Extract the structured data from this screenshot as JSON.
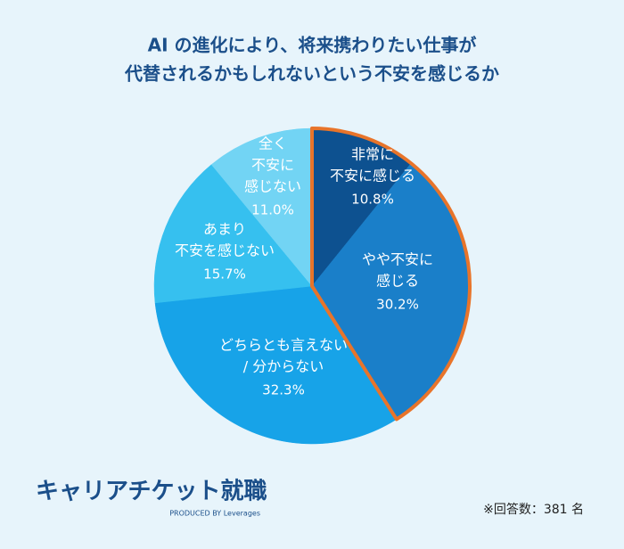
{
  "chart_data": {
    "type": "pie",
    "title": [
      "AI の進化により、将来携わりたい仕事が",
      "代替されるかもしれないという不安を感じるか"
    ],
    "categories": [
      [
        "非常に",
        "不安に感じる"
      ],
      [
        "やや不安に",
        "感じる"
      ],
      [
        "どちらとも言えない",
        "/ 分からない"
      ],
      [
        "あまり",
        "不安を感じない"
      ],
      [
        "全く",
        "不安に",
        "感じない"
      ]
    ],
    "values": [
      10.8,
      30.2,
      32.3,
      15.7,
      11.0
    ],
    "value_labels": [
      "10.8%",
      "30.2%",
      "32.3%",
      "15.7%",
      "11.0%"
    ],
    "colors": [
      "#0d5190",
      "#1a7fc9",
      "#17a3e8",
      "#36c0ef",
      "#72d4f4"
    ],
    "highlight": {
      "indices": [
        0,
        1
      ],
      "color": "#e8742a"
    }
  },
  "footer": {
    "logo": "キャリアチケット就職",
    "produced_by": "PRODUCED BY Leverages",
    "note": "※回答数：381 名"
  }
}
